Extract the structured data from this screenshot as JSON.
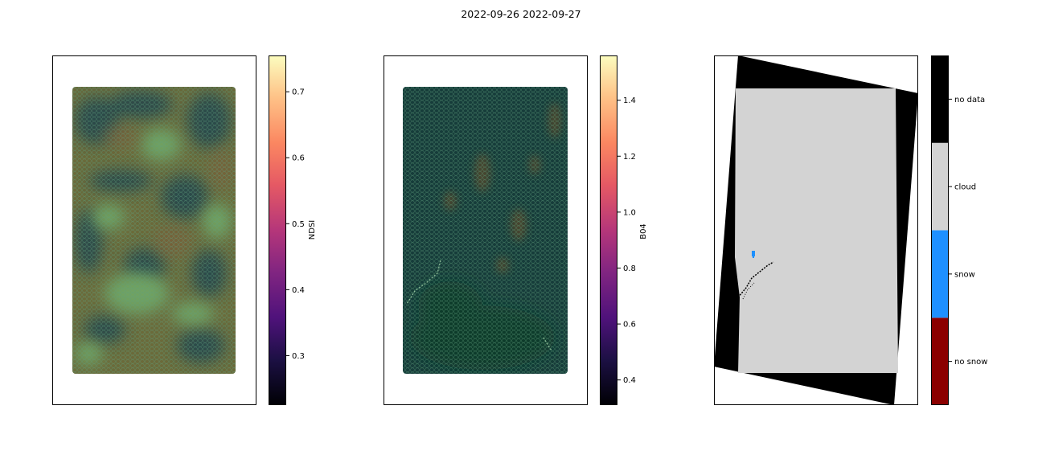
{
  "figure": {
    "suptitle": "2022-09-26 2022-09-27"
  },
  "chart_data": [
    {
      "type": "heatmap",
      "panel": "left",
      "colorbar": {
        "label": "NDSI",
        "colormap": "magma",
        "range": [
          0.225,
          0.755
        ],
        "ticks": [
          0.3,
          0.4,
          0.5,
          0.6,
          0.7
        ],
        "tick_labels": [
          "0.3",
          "0.4",
          "0.5",
          "0.6",
          "0.7"
        ]
      },
      "overlay": "hexagonal grid of mountain terrain (green/brown/dark teal)",
      "colors": {
        "base": "#6b6a3a",
        "dark": "#2c4a48",
        "light": "#6fa262",
        "hex_edge": "#5f9e7c"
      }
    },
    {
      "type": "heatmap",
      "panel": "middle",
      "colorbar": {
        "label": "B04",
        "colormap": "magma",
        "range": [
          0.31,
          1.56
        ],
        "ticks": [
          0.4,
          0.6,
          0.8,
          1.0,
          1.2,
          1.4
        ],
        "tick_labels": [
          "0.4",
          "0.6",
          "0.8",
          "1.0",
          "1.2",
          "1.4"
        ]
      },
      "overlay": "hexagonal grid, mostly dark teal with faint brown patches",
      "colors": {
        "base": "#163c3a",
        "warm": "#5a4a2c",
        "hex_edge": "#5f9e7c"
      }
    },
    {
      "type": "heatmap",
      "panel": "right",
      "colorbar": {
        "kind": "categorical",
        "categories": [
          "no snow",
          "snow",
          "cloud",
          "no data"
        ],
        "colors": [
          "#8b0000",
          "#1e90ff",
          "#d3d3d3",
          "#000000"
        ]
      },
      "classes_shown": [
        "no data",
        "cloud",
        "snow"
      ]
    }
  ]
}
